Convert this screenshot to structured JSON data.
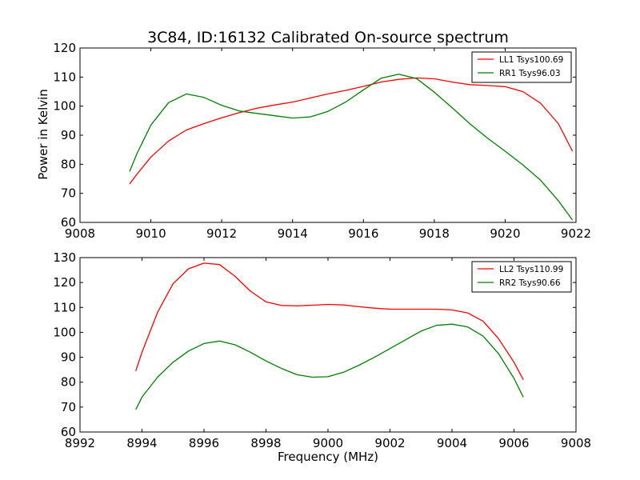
{
  "figure": {
    "title": "3C84, ID:16132 Calibrated On-source spectrum",
    "ylabel": "Power in Kelvin",
    "xlabel": "Frequency (MHz)"
  },
  "chart_data": [
    {
      "type": "line",
      "xlim": [
        9008,
        9022
      ],
      "ylim": [
        60,
        120
      ],
      "xticks": [
        9008,
        9010,
        9012,
        9014,
        9016,
        9018,
        9020,
        9022
      ],
      "yticks": [
        60,
        70,
        80,
        90,
        100,
        110,
        120
      ],
      "grid": false,
      "legend": "top-right",
      "series": [
        {
          "name": "LL1 Tsys100.69",
          "color": "#ff0000",
          "x": [
            9009.4,
            9009.6,
            9010.0,
            9010.5,
            9011.0,
            9011.5,
            9012.0,
            9012.5,
            9013.0,
            9013.5,
            9014.0,
            9014.5,
            9015.0,
            9015.5,
            9016.0,
            9016.5,
            9017.0,
            9017.5,
            9018.0,
            9018.5,
            9019.0,
            9019.5,
            9020.0,
            9020.5,
            9021.0,
            9021.5,
            9021.9
          ],
          "y": [
            73.2,
            76.5,
            82.5,
            88.0,
            91.8,
            94.0,
            96.0,
            97.8,
            99.3,
            100.4,
            101.4,
            102.8,
            104.2,
            105.4,
            106.8,
            108.3,
            109.2,
            109.7,
            109.4,
            108.3,
            107.4,
            107.1,
            106.7,
            105.0,
            101.0,
            94.0,
            84.5
          ]
        },
        {
          "name": "RR1 Tsys96.03",
          "color": "#008000",
          "x": [
            9009.4,
            9009.6,
            9010.0,
            9010.5,
            9011.0,
            9011.5,
            9012.0,
            9012.5,
            9013.0,
            9013.5,
            9014.0,
            9014.5,
            9015.0,
            9015.5,
            9016.0,
            9016.5,
            9017.0,
            9017.5,
            9018.0,
            9018.5,
            9019.0,
            9019.5,
            9020.0,
            9020.5,
            9021.0,
            9021.5,
            9021.9
          ],
          "y": [
            77.5,
            83.5,
            93.5,
            101.2,
            104.2,
            103.0,
            100.3,
            98.3,
            97.5,
            96.7,
            95.9,
            96.3,
            98.2,
            101.4,
            105.6,
            109.6,
            111.0,
            109.5,
            104.8,
            99.5,
            94.0,
            89.0,
            84.5,
            79.8,
            74.5,
            67.5,
            60.8
          ]
        }
      ]
    },
    {
      "type": "line",
      "xlim": [
        8992,
        9008
      ],
      "ylim": [
        60,
        130
      ],
      "xticks": [
        8992,
        8994,
        8996,
        8998,
        9000,
        9002,
        9004,
        9006,
        9008
      ],
      "yticks": [
        60,
        70,
        80,
        90,
        100,
        110,
        120,
        130
      ],
      "grid": false,
      "legend": "top-right",
      "series": [
        {
          "name": "LL2 Tsys110.99",
          "color": "#ff0000",
          "x": [
            8993.8,
            8994.0,
            8994.5,
            8995.0,
            8995.5,
            8996.0,
            8996.5,
            8997.0,
            8997.5,
            8998.0,
            8998.5,
            8999.0,
            8999.5,
            9000.0,
            9000.5,
            9001.0,
            9001.5,
            9002.0,
            9002.5,
            9003.0,
            9003.5,
            9004.0,
            9004.5,
            9005.0,
            9005.5,
            9006.0,
            9006.3
          ],
          "y": [
            84.5,
            92.0,
            108.0,
            119.5,
            125.5,
            127.8,
            127.2,
            122.5,
            116.5,
            112.2,
            110.8,
            110.6,
            110.9,
            111.2,
            111.0,
            110.3,
            109.7,
            109.3,
            109.3,
            109.3,
            109.3,
            109.0,
            107.8,
            104.5,
            97.5,
            88.0,
            81.0
          ]
        },
        {
          "name": "RR2 Tsys90.66",
          "color": "#008000",
          "x": [
            8993.8,
            8994.0,
            8994.5,
            8995.0,
            8995.5,
            8996.0,
            8996.5,
            8997.0,
            8997.5,
            8998.0,
            8998.5,
            8999.0,
            8999.5,
            9000.0,
            9000.5,
            9001.0,
            9001.5,
            9002.0,
            9002.5,
            9003.0,
            9003.5,
            9004.0,
            9004.5,
            9005.0,
            9005.5,
            9006.0,
            9006.3
          ],
          "y": [
            69.0,
            74.0,
            82.0,
            88.0,
            92.5,
            95.5,
            96.5,
            95.0,
            92.0,
            88.5,
            85.5,
            83.0,
            82.0,
            82.2,
            84.0,
            86.8,
            90.0,
            93.5,
            97.0,
            100.5,
            102.8,
            103.3,
            102.2,
            98.5,
            91.5,
            81.5,
            74.0
          ]
        }
      ]
    }
  ]
}
